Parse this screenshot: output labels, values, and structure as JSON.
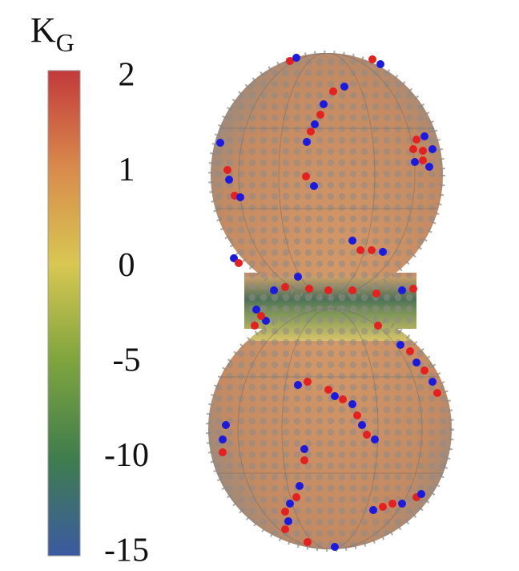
{
  "colorbar": {
    "title": {
      "main": "K",
      "subscript": "G"
    },
    "tick_labels": [
      "2",
      "1",
      "0",
      "-5",
      "-10",
      "-15"
    ]
  }
}
